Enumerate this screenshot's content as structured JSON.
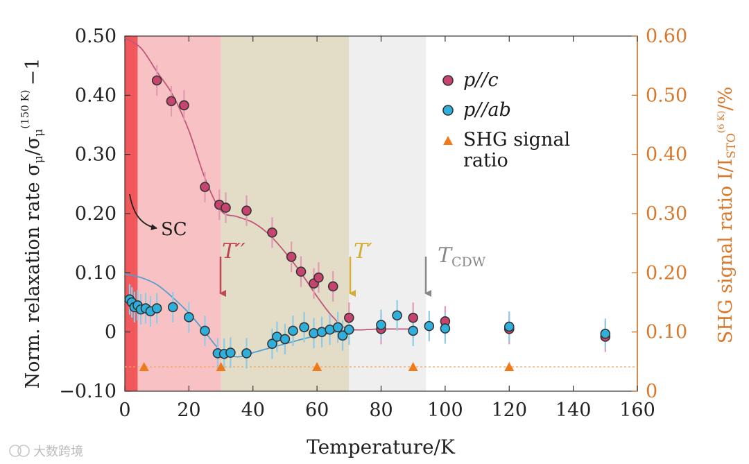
{
  "chart_data": {
    "type": "scatter",
    "xlabel": "Temperature/K",
    "ylabel_left": "Norm. relaxation rate σμ/σμ(150 K) −1",
    "ylabel_right": "SHG signal ratio I/ISTO(6 K)/%",
    "xlim": [
      0,
      160
    ],
    "ylim_left": [
      -0.1,
      0.5
    ],
    "ylim_right": [
      0,
      0.6
    ],
    "xticks": [
      "0",
      "20",
      "40",
      "60",
      "80",
      "100",
      "120",
      "140",
      "160"
    ],
    "yticks_left": [
      "−0.10",
      "0",
      "0.10",
      "0.20",
      "0.30",
      "0.40",
      "0.50"
    ],
    "yticks_right": [
      "0",
      "0.10",
      "0.20",
      "0.30",
      "0.40",
      "0.50",
      "0.60"
    ],
    "regions": [
      {
        "name": "SC",
        "from": 0,
        "to": 4,
        "color": "#f0585c"
      },
      {
        "name": "below T''",
        "from": 4,
        "to": 30,
        "color": "#f8c2c4"
      },
      {
        "name": "T'' to T'",
        "from": 30,
        "to": 70,
        "color": "#e3dcc6"
      },
      {
        "name": "T' to TCDW",
        "from": 70,
        "to": 94,
        "color": "#efefef"
      }
    ],
    "annotations": [
      {
        "label": "SC",
        "x": 4,
        "y": 0.17
      },
      {
        "label": "T′′",
        "x": 30,
        "color": "#c0474f"
      },
      {
        "label": "T′",
        "x": 70,
        "color": "#d4ae34"
      },
      {
        "label": "TCDW",
        "x": 94,
        "color": "#888888"
      }
    ],
    "series": [
      {
        "name": "p//c",
        "color": "#c6446e",
        "x": [
          10,
          14.5,
          18.5,
          25,
          29.5,
          31.5,
          38,
          46,
          52,
          55,
          59,
          60.5,
          65,
          70,
          80,
          90,
          100,
          120,
          150
        ],
        "y": [
          0.425,
          0.39,
          0.383,
          0.245,
          0.215,
          0.21,
          0.205,
          0.168,
          0.127,
          0.102,
          0.082,
          0.092,
          0.077,
          0.024,
          0.005,
          0.024,
          0.018,
          0.005,
          -0.008
        ]
      },
      {
        "name": "p//ab",
        "color": "#2fb0dc",
        "x": [
          1.5,
          2.2,
          3,
          4,
          5,
          6.5,
          8,
          10,
          15,
          20,
          25,
          29,
          31,
          33,
          38,
          46,
          47.5,
          50,
          52.5,
          56,
          59,
          61.5,
          64,
          66.5,
          68,
          70,
          80,
          85,
          90,
          95,
          100,
          120,
          150
        ],
        "y": [
          0.055,
          0.05,
          0.042,
          0.045,
          0.038,
          0.04,
          0.035,
          0.04,
          0.042,
          0.025,
          0.002,
          -0.036,
          -0.037,
          -0.035,
          -0.036,
          -0.02,
          -0.008,
          -0.012,
          0.002,
          0.008,
          -0.002,
          0.0,
          0.004,
          0.008,
          -0.006,
          0.004,
          0.012,
          0.028,
          0.002,
          0.01,
          0.006,
          0.009,
          -0.003
        ]
      },
      {
        "name": "SHG signal ratio",
        "color": "#f07a19",
        "axis": "right",
        "x": [
          6,
          30,
          60,
          90,
          120
        ],
        "y": [
          0.041,
          0.041,
          0.041,
          0.041,
          0.041
        ]
      }
    ],
    "fit_curves": [
      {
        "name": "p//c fit",
        "color": "#c0577a",
        "x": [
          0,
          5,
          10,
          15,
          20,
          25,
          30,
          35,
          40,
          45,
          50,
          55,
          60,
          65,
          70,
          80,
          90
        ],
        "y": [
          0.497,
          0.48,
          0.44,
          0.4,
          0.34,
          0.26,
          0.205,
          0.195,
          0.185,
          0.165,
          0.135,
          0.1,
          0.06,
          0.025,
          0.005,
          0.005,
          0.005
        ]
      },
      {
        "name": "p//ab fit",
        "color": "#4f9fd0",
        "x": [
          0,
          5,
          10,
          15,
          20,
          25,
          30,
          35,
          40,
          50,
          60,
          70
        ],
        "y": [
          0.098,
          0.092,
          0.08,
          0.058,
          0.032,
          0.0,
          -0.032,
          -0.042,
          -0.035,
          -0.02,
          -0.006,
          0.004
        ]
      }
    ],
    "legend_position": "top-right"
  },
  "legend": {
    "pc": "p//c",
    "pab": "p//ab",
    "shg_line1": "SHG signal",
    "shg_line2": "ratio"
  },
  "labels": {
    "xlabel": "Temperature/K",
    "sc": "SC",
    "t2": "T′′",
    "t1": "T′",
    "tcdw_t": "T",
    "tcdw_sub": "CDW",
    "yl_main": "Norm. relaxation rate σ",
    "yl_sub1": "μ",
    "yl_slash": "/σ",
    "yl_sub2": "μ",
    "yl_sup": "(150 K)",
    "yl_tail": "−1",
    "yr_main": "SHG signal ratio I/I",
    "yr_sub": "STO",
    "yr_sup": "(6 K)",
    "yr_tail": "/%"
  },
  "watermark": "大数跨境"
}
